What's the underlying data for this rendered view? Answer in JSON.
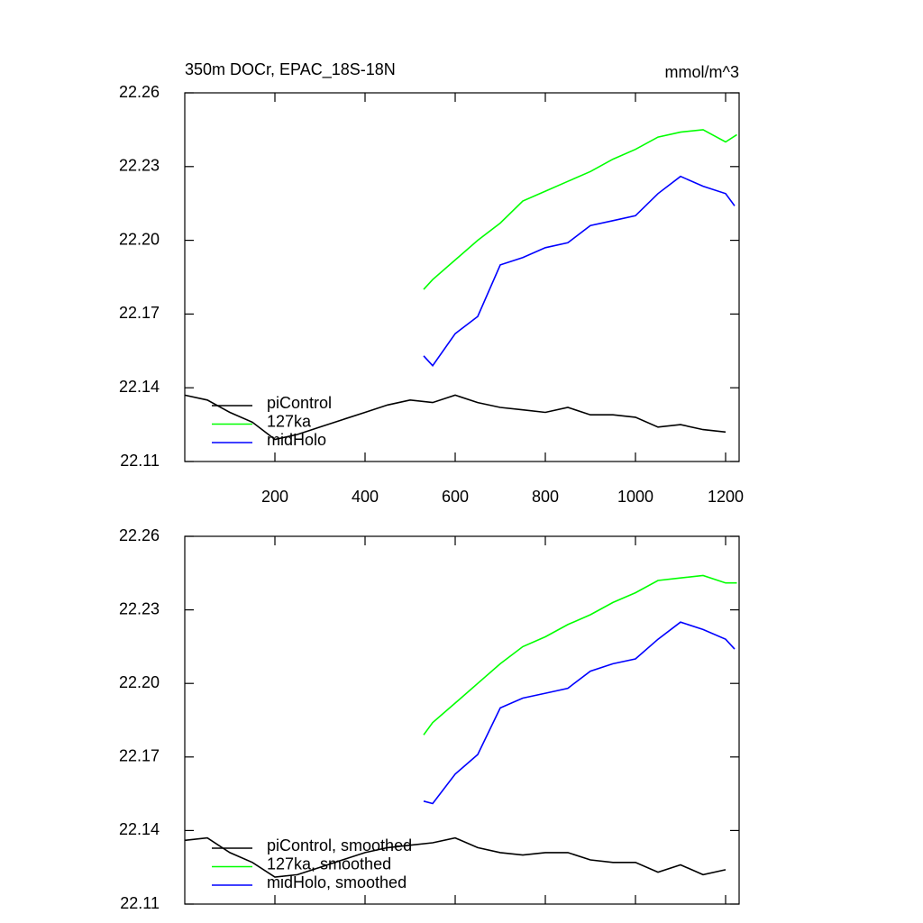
{
  "chart_data": [
    {
      "type": "line",
      "title": "350m DOCr, EPAC_18S-18N",
      "units": "mmol/m^3",
      "xlim": [
        0,
        1230
      ],
      "xticks": [
        200,
        400,
        600,
        800,
        1000,
        1200
      ],
      "xtick_labels": true,
      "ylim": [
        22.11,
        22.26
      ],
      "yticks": [
        22.11,
        22.14,
        22.17,
        {
          "value": 22.2,
          "label": "22.20"
        },
        22.23,
        22.26
      ],
      "legend": "lower left",
      "series": [
        {
          "name": "piControl",
          "color": "#000000",
          "x": [
            0,
            50,
            100,
            150,
            200,
            250,
            300,
            350,
            400,
            450,
            500,
            550,
            600,
            650,
            700,
            750,
            800,
            850,
            900,
            950,
            1000,
            1050,
            1100,
            1150,
            1200
          ],
          "values": [
            22.137,
            22.135,
            22.13,
            22.126,
            22.119,
            22.121,
            22.124,
            22.127,
            22.13,
            22.133,
            22.135,
            22.134,
            22.137,
            22.134,
            22.132,
            22.131,
            22.13,
            22.132,
            22.129,
            22.129,
            22.128,
            22.124,
            22.125,
            22.123,
            22.122
          ]
        },
        {
          "name": "127ka",
          "color": "#00ff00",
          "x": [
            530,
            550,
            600,
            650,
            700,
            750,
            800,
            850,
            900,
            950,
            1000,
            1050,
            1100,
            1150,
            1200,
            1225
          ],
          "values": [
            22.18,
            22.184,
            22.192,
            22.2,
            22.207,
            22.216,
            22.22,
            22.224,
            22.228,
            22.233,
            22.237,
            22.242,
            22.244,
            22.245,
            22.24,
            22.243
          ]
        },
        {
          "name": "midHolo",
          "color": "#0000ff",
          "x": [
            530,
            550,
            600,
            650,
            700,
            750,
            800,
            850,
            900,
            950,
            1000,
            1050,
            1100,
            1150,
            1200,
            1220
          ],
          "values": [
            22.153,
            22.149,
            22.162,
            22.169,
            22.19,
            22.193,
            22.197,
            22.199,
            22.206,
            22.208,
            22.21,
            22.219,
            22.226,
            22.222,
            22.219,
            22.214
          ]
        }
      ]
    },
    {
      "type": "line",
      "xlim": [
        0,
        1230
      ],
      "xticks": [
        200,
        400,
        600,
        800,
        1000,
        1200
      ],
      "xtick_labels": false,
      "ylim": [
        22.11,
        22.26
      ],
      "yticks": [
        22.11,
        22.14,
        22.17,
        {
          "value": 22.2,
          "label": "22.20"
        },
        22.23,
        22.26
      ],
      "legend": "lower left",
      "series": [
        {
          "name": "piControl, smoothed",
          "color": "#000000",
          "x": [
            0,
            50,
            100,
            150,
            200,
            250,
            300,
            350,
            400,
            450,
            500,
            550,
            600,
            650,
            700,
            750,
            800,
            850,
            900,
            950,
            1000,
            1050,
            1100,
            1150,
            1200
          ],
          "values": [
            22.136,
            22.137,
            22.131,
            22.127,
            22.121,
            22.122,
            22.125,
            22.128,
            22.131,
            22.133,
            22.134,
            22.135,
            22.137,
            22.133,
            22.131,
            22.13,
            22.131,
            22.131,
            22.128,
            22.127,
            22.127,
            22.123,
            22.126,
            22.122,
            22.124
          ]
        },
        {
          "name": "127ka, smoothed",
          "color": "#00ff00",
          "x": [
            530,
            550,
            600,
            650,
            700,
            750,
            800,
            850,
            900,
            950,
            1000,
            1050,
            1100,
            1150,
            1200,
            1225
          ],
          "values": [
            22.179,
            22.184,
            22.192,
            22.2,
            22.208,
            22.215,
            22.219,
            22.224,
            22.228,
            22.233,
            22.237,
            22.242,
            22.243,
            22.244,
            22.241,
            22.241
          ]
        },
        {
          "name": "midHolo, smoothed",
          "color": "#0000ff",
          "x": [
            530,
            550,
            600,
            650,
            700,
            750,
            800,
            850,
            900,
            950,
            1000,
            1050,
            1100,
            1150,
            1200,
            1220
          ],
          "values": [
            22.152,
            22.151,
            22.163,
            22.171,
            22.19,
            22.194,
            22.196,
            22.198,
            22.205,
            22.208,
            22.21,
            22.218,
            22.225,
            22.222,
            22.218,
            22.214
          ]
        }
      ]
    }
  ]
}
